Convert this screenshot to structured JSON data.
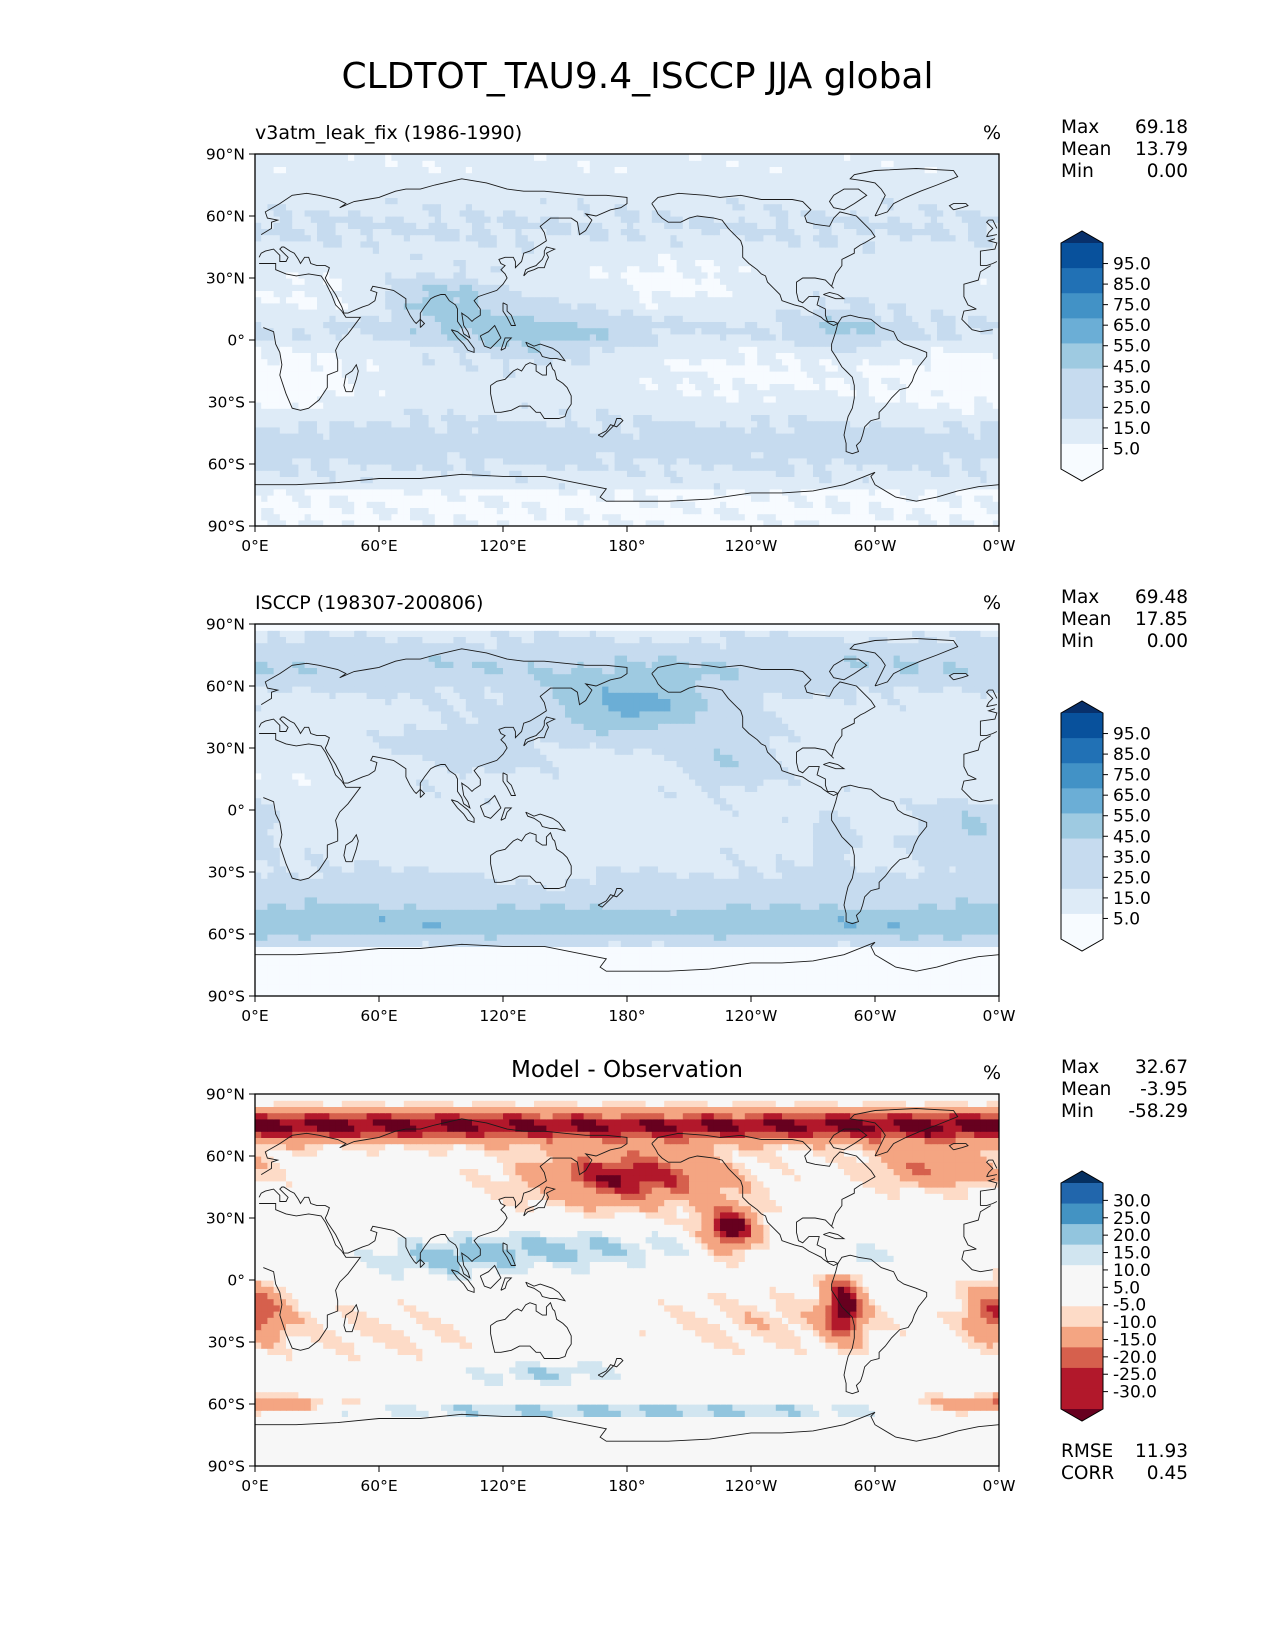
{
  "figure_title": "CLDTOT_TAU9.4_ISCCP JJA global",
  "colors": {
    "seq": [
      "#f7fbff",
      "#deebf7",
      "#c6dbef",
      "#9ecae1",
      "#6baed6",
      "#4292c6",
      "#2171b5",
      "#08519c",
      "#08306b"
    ],
    "div": [
      "#67001f",
      "#b2182b",
      "#d6604d",
      "#f4a582",
      "#fddbc7",
      "#f7f7f7",
      "#d1e5f0",
      "#92c5de",
      "#4393c3",
      "#2166ac",
      "#053061"
    ],
    "coast": "#1a1a1a"
  },
  "chart_data": [
    {
      "type": "heatmap",
      "id": "model",
      "title_left": "v3atm_leak_fix (1986-1990)",
      "title_right": "%",
      "stats": {
        "max_label": "Max",
        "max": "69.18",
        "mean_label": "Mean",
        "mean": "13.79",
        "min_label": "Min",
        "min": "0.00"
      },
      "xlim": [
        0,
        360
      ],
      "ylim": [
        -90,
        90
      ],
      "xticks": [
        "0°E",
        "60°E",
        "120°E",
        "180°",
        "120°W",
        "60°W",
        "0°W"
      ],
      "yticks": [
        "90°N",
        "60°N",
        "30°N",
        "0°",
        "30°S",
        "60°S",
        "90°S"
      ],
      "colorbar": {
        "levels": [
          0,
          5,
          15,
          25,
          35,
          45,
          55,
          65,
          75,
          85,
          95,
          100
        ],
        "labels": [
          "95.0",
          "85.0",
          "75.0",
          "65.0",
          "55.0",
          "45.0",
          "35.0",
          "25.0",
          "15.0",
          "5.0"
        ],
        "extend": "both"
      }
    },
    {
      "type": "heatmap",
      "id": "obs",
      "title_left": "ISCCP (198307-200806)",
      "title_right": "%",
      "stats": {
        "max_label": "Max",
        "max": "69.48",
        "mean_label": "Mean",
        "mean": "17.85",
        "min_label": "Min",
        "min": "0.00"
      },
      "xlim": [
        0,
        360
      ],
      "ylim": [
        -90,
        90
      ],
      "xticks": [
        "0°E",
        "60°E",
        "120°E",
        "180°",
        "120°W",
        "60°W",
        "0°W"
      ],
      "yticks": [
        "90°N",
        "60°N",
        "30°N",
        "0°",
        "30°S",
        "60°S",
        "90°S"
      ],
      "colorbar": {
        "levels": [
          0,
          5,
          15,
          25,
          35,
          45,
          55,
          65,
          75,
          85,
          95,
          100
        ],
        "labels": [
          "95.0",
          "85.0",
          "75.0",
          "65.0",
          "55.0",
          "45.0",
          "35.0",
          "25.0",
          "15.0",
          "5.0"
        ],
        "extend": "both"
      }
    },
    {
      "type": "heatmap",
      "id": "diff",
      "title_center": "Model - Observation",
      "title_right": "%",
      "stats": {
        "max_label": "Max",
        "max": "32.67",
        "mean_label": "Mean",
        "mean": "-3.95",
        "min_label": "Min",
        "min": "-58.29"
      },
      "metrics": {
        "rmse_label": "RMSE",
        "rmse": "11.93",
        "corr_label": "CORR",
        "corr": "0.45"
      },
      "xlim": [
        0,
        360
      ],
      "ylim": [
        -90,
        90
      ],
      "xticks": [
        "0°E",
        "60°E",
        "120°E",
        "180°",
        "120°W",
        "60°W",
        "0°W"
      ],
      "yticks": [
        "90°N",
        "60°N",
        "30°N",
        "0°",
        "30°S",
        "60°S",
        "90°S"
      ],
      "colorbar": {
        "levels": [
          -35,
          -30,
          -25,
          -20,
          -15,
          -10,
          -5,
          5,
          10,
          15,
          20,
          25,
          30,
          35
        ],
        "labels": [
          "30.0",
          "25.0",
          "20.0",
          "15.0",
          "10.0",
          "5.0",
          "-5.0",
          "-10.0",
          "-15.0",
          "-20.0",
          "-25.0",
          "-30.0"
        ],
        "extend": "both"
      }
    }
  ]
}
